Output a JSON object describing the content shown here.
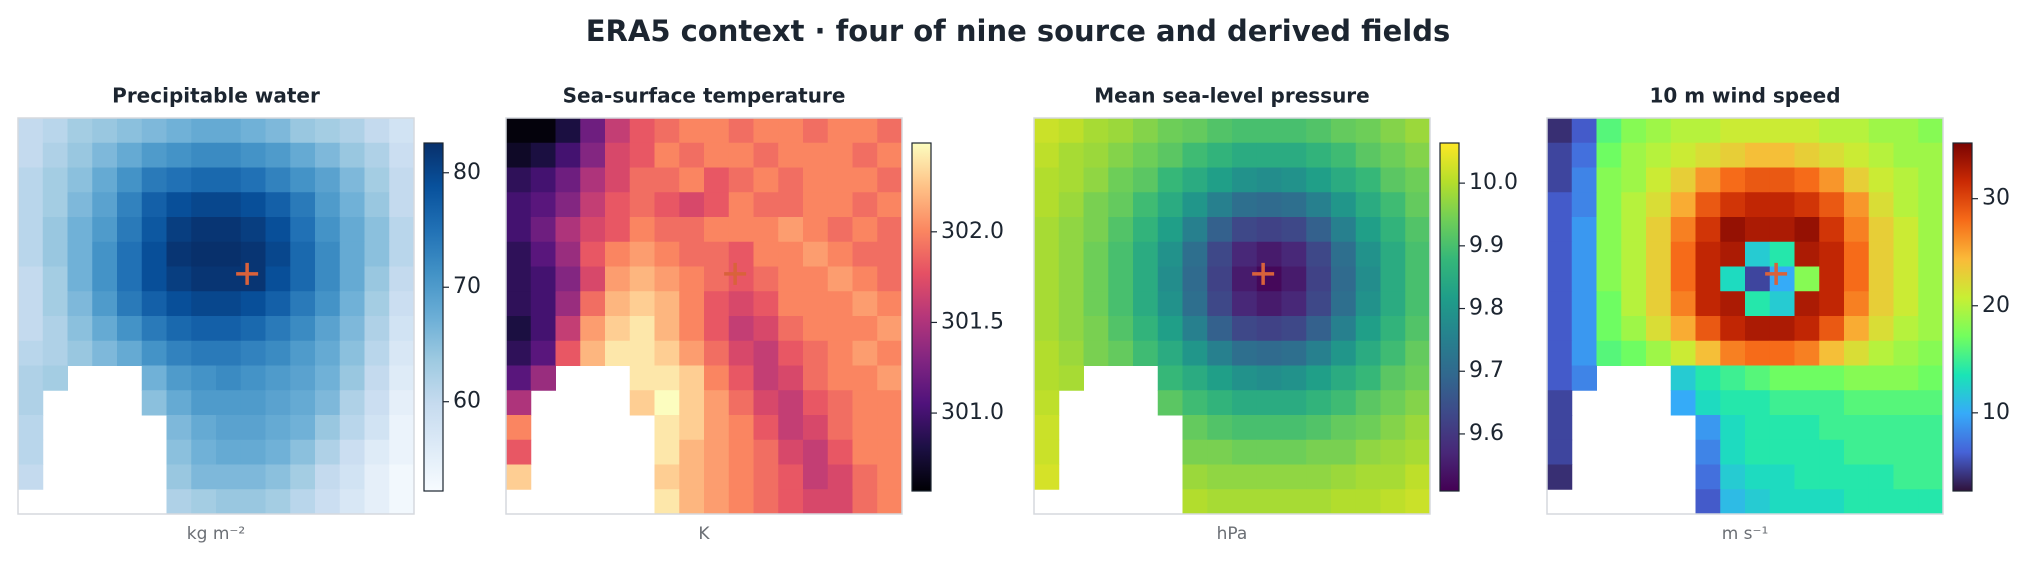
{
  "title": "ERA5 context · four of nine source and derived fields",
  "chart_data": [
    {
      "type": "heatmap",
      "title": "Precipitable water",
      "xlabel": "kg m⁻²",
      "colormap": "Blues",
      "clim": [
        52.2,
        82.6
      ],
      "cticks": [
        60,
        70,
        80
      ],
      "values": [
        [
          60,
          61,
          63,
          64,
          65,
          66,
          67,
          68,
          68,
          67,
          66,
          64,
          63,
          62,
          60,
          58
        ],
        [
          60,
          62,
          64,
          66,
          68,
          70,
          71,
          72,
          72,
          71,
          70,
          68,
          66,
          64,
          62,
          59
        ],
        [
          61,
          63,
          65,
          68,
          71,
          74,
          75,
          76,
          76,
          75,
          73,
          71,
          69,
          66,
          63,
          60
        ],
        [
          61,
          63,
          66,
          69,
          73,
          77,
          79,
          80,
          80,
          79,
          77,
          74,
          70,
          67,
          64,
          60
        ],
        [
          61,
          64,
          67,
          70,
          74,
          78,
          81,
          82,
          82,
          81,
          79,
          75,
          71,
          68,
          65,
          61
        ],
        [
          61,
          64,
          67,
          71,
          75,
          79,
          82,
          83,
          83,
          82,
          80,
          76,
          72,
          68,
          65,
          61
        ],
        [
          60,
          63,
          67,
          71,
          75,
          79,
          81,
          82,
          82,
          82,
          79,
          76,
          72,
          68,
          64,
          60
        ],
        [
          60,
          63,
          66,
          70,
          74,
          77,
          79,
          80,
          80,
          79,
          77,
          74,
          71,
          67,
          63,
          59
        ],
        [
          60,
          62,
          65,
          68,
          71,
          74,
          76,
          77,
          77,
          76,
          74,
          72,
          69,
          66,
          62,
          58
        ],
        [
          61,
          62,
          64,
          66,
          68,
          71,
          73,
          74,
          74,
          73,
          72,
          70,
          68,
          65,
          61,
          57
        ],
        [
          62,
          63,
          null,
          null,
          null,
          67,
          70,
          71,
          72,
          71,
          70,
          69,
          67,
          64,
          60,
          56
        ],
        [
          62,
          null,
          null,
          null,
          null,
          65,
          68,
          70,
          70,
          70,
          69,
          68,
          66,
          62,
          59,
          55
        ],
        [
          61,
          null,
          null,
          null,
          null,
          null,
          66,
          68,
          69,
          69,
          68,
          67,
          64,
          61,
          58,
          54
        ],
        [
          61,
          null,
          null,
          null,
          null,
          null,
          65,
          67,
          68,
          68,
          67,
          65,
          62,
          59,
          56,
          54
        ],
        [
          60,
          null,
          null,
          null,
          null,
          null,
          64,
          66,
          66,
          66,
          65,
          63,
          60,
          58,
          55,
          53
        ],
        [
          null,
          null,
          null,
          null,
          null,
          null,
          62,
          63,
          64,
          64,
          63,
          61,
          59,
          57,
          55,
          53
        ]
      ]
    },
    {
      "type": "heatmap",
      "title": "Sea-surface temperature",
      "xlabel": "K",
      "colormap": "magma",
      "clim": [
        300.57,
        302.49
      ],
      "cticks": [
        {
          "value": 301,
          "label": "301.0"
        },
        301.5,
        {
          "value": 302,
          "label": "302.0"
        }
      ],
      "values": [
        [
          300.6,
          300.6,
          300.8,
          301.2,
          301.6,
          301.8,
          301.9,
          302.0,
          302.0,
          301.9,
          302.0,
          302.0,
          301.9,
          302.0,
          302.0,
          301.9
        ],
        [
          300.7,
          300.8,
          301.0,
          301.3,
          301.7,
          301.8,
          302.0,
          301.9,
          302.0,
          302.0,
          301.9,
          302.0,
          302.0,
          302.0,
          301.9,
          302.0
        ],
        [
          300.9,
          301.0,
          301.2,
          301.5,
          301.7,
          301.9,
          301.9,
          302.0,
          301.8,
          301.9,
          302.0,
          301.9,
          302.0,
          302.0,
          302.0,
          301.9
        ],
        [
          301.0,
          301.1,
          301.3,
          301.6,
          301.8,
          301.9,
          301.8,
          301.7,
          301.8,
          302.0,
          301.9,
          301.9,
          302.0,
          302.0,
          301.9,
          302.0
        ],
        [
          301.0,
          301.2,
          301.5,
          301.7,
          301.8,
          302.0,
          301.9,
          301.9,
          302.0,
          302.0,
          302.0,
          302.1,
          302.0,
          301.9,
          302.0,
          301.9
        ],
        [
          300.9,
          301.1,
          301.4,
          301.8,
          302.0,
          302.1,
          302.0,
          301.9,
          301.9,
          301.8,
          302.0,
          302.0,
          302.1,
          302.0,
          301.9,
          301.9
        ],
        [
          300.9,
          301.0,
          301.3,
          301.7,
          302.1,
          302.2,
          302.1,
          302.0,
          301.9,
          301.8,
          301.9,
          302.0,
          302.0,
          302.1,
          302.0,
          301.9
        ],
        [
          300.9,
          301.0,
          301.4,
          301.9,
          302.2,
          302.3,
          302.2,
          302.0,
          301.8,
          301.7,
          301.8,
          302.0,
          302.0,
          302.0,
          302.1,
          302.0
        ],
        [
          300.8,
          301.0,
          301.6,
          302.1,
          302.3,
          302.4,
          302.2,
          302.0,
          301.8,
          301.6,
          301.7,
          301.9,
          302.0,
          302.0,
          302.0,
          302.1
        ],
        [
          300.9,
          301.1,
          301.8,
          302.2,
          302.4,
          302.4,
          302.3,
          302.1,
          301.9,
          301.7,
          301.6,
          301.8,
          301.9,
          302.0,
          302.1,
          302.0
        ],
        [
          301.1,
          301.4,
          null,
          null,
          null,
          302.4,
          302.4,
          302.3,
          302.0,
          301.8,
          301.6,
          301.7,
          301.9,
          302.0,
          302.0,
          302.1
        ],
        [
          301.5,
          null,
          null,
          null,
          null,
          302.3,
          302.5,
          302.3,
          302.1,
          301.9,
          301.7,
          301.6,
          301.8,
          301.9,
          302.0,
          302.0
        ],
        [
          302.0,
          null,
          null,
          null,
          null,
          null,
          302.4,
          302.3,
          302.1,
          302.0,
          301.8,
          301.6,
          301.7,
          301.9,
          302.0,
          302.0
        ],
        [
          301.8,
          null,
          null,
          null,
          null,
          null,
          302.4,
          302.2,
          302.1,
          302.0,
          301.9,
          301.7,
          301.6,
          301.8,
          302.0,
          302.0
        ],
        [
          302.3,
          null,
          null,
          null,
          null,
          null,
          302.3,
          302.2,
          302.1,
          302.0,
          301.9,
          301.8,
          301.6,
          301.7,
          301.9,
          302.0
        ],
        [
          null,
          null,
          null,
          null,
          null,
          null,
          302.4,
          302.2,
          302.1,
          302.0,
          301.9,
          301.8,
          301.7,
          301.7,
          301.9,
          302.0
        ]
      ]
    },
    {
      "type": "heatmap",
      "title": "Mean sea-level pressure",
      "xlabel": "hPa",
      "colormap": "viridis",
      "clim": [
        9.509,
        10.064
      ],
      "cticks": [
        9.6,
        9.7,
        9.8,
        9.9,
        {
          "value": 10,
          "label": "10.0"
        }
      ],
      "values": [
        [
          10.02,
          10.01,
          9.99,
          9.98,
          9.96,
          9.94,
          9.93,
          9.91,
          9.9,
          9.9,
          9.9,
          9.91,
          9.93,
          9.94,
          9.96,
          9.98
        ],
        [
          10.01,
          9.99,
          9.98,
          9.96,
          9.94,
          9.92,
          9.89,
          9.87,
          9.85,
          9.85,
          9.85,
          9.87,
          9.89,
          9.92,
          9.94,
          9.96
        ],
        [
          10.0,
          9.99,
          9.97,
          9.94,
          9.92,
          9.88,
          9.85,
          9.82,
          9.79,
          9.78,
          9.79,
          9.82,
          9.85,
          9.88,
          9.92,
          9.94
        ],
        [
          10.0,
          9.98,
          9.95,
          9.93,
          9.89,
          9.85,
          9.8,
          9.75,
          9.71,
          9.7,
          9.71,
          9.75,
          9.8,
          9.85,
          9.89,
          9.93
        ],
        [
          9.99,
          9.97,
          9.95,
          9.91,
          9.87,
          9.82,
          9.75,
          9.68,
          9.63,
          9.62,
          9.63,
          9.68,
          9.75,
          9.82,
          9.87,
          9.91
        ],
        [
          9.99,
          9.97,
          9.94,
          9.9,
          9.85,
          9.79,
          9.71,
          9.63,
          9.57,
          9.55,
          9.57,
          9.63,
          9.71,
          9.79,
          9.85,
          9.9
        ],
        [
          9.99,
          9.97,
          9.94,
          9.9,
          9.85,
          9.78,
          9.7,
          9.62,
          9.55,
          9.52,
          9.55,
          9.62,
          9.7,
          9.78,
          9.85,
          9.9
        ],
        [
          9.99,
          9.97,
          9.94,
          9.9,
          9.85,
          9.79,
          9.71,
          9.63,
          9.57,
          9.55,
          9.57,
          9.63,
          9.71,
          9.79,
          9.85,
          9.9
        ],
        [
          9.99,
          9.97,
          9.95,
          9.91,
          9.87,
          9.82,
          9.75,
          9.68,
          9.63,
          9.62,
          9.63,
          9.68,
          9.75,
          9.82,
          9.87,
          9.91
        ],
        [
          10.0,
          9.98,
          9.95,
          9.93,
          9.89,
          9.85,
          9.8,
          9.75,
          9.71,
          9.7,
          9.71,
          9.75,
          9.8,
          9.85,
          9.89,
          9.93
        ],
        [
          10.0,
          9.99,
          null,
          null,
          null,
          9.88,
          9.85,
          9.82,
          9.79,
          9.78,
          9.79,
          9.82,
          9.85,
          9.88,
          9.92,
          9.94
        ],
        [
          10.01,
          null,
          null,
          null,
          null,
          9.92,
          9.89,
          9.87,
          9.85,
          9.85,
          9.85,
          9.87,
          9.89,
          9.92,
          9.94,
          9.96
        ],
        [
          10.02,
          null,
          null,
          null,
          null,
          null,
          9.93,
          9.91,
          9.9,
          9.9,
          9.9,
          9.91,
          9.93,
          9.94,
          9.96,
          9.98
        ],
        [
          10.02,
          null,
          null,
          null,
          null,
          null,
          9.95,
          9.95,
          9.94,
          9.94,
          9.94,
          9.95,
          9.95,
          9.97,
          9.98,
          9.99
        ],
        [
          10.03,
          null,
          null,
          null,
          null,
          null,
          9.98,
          9.97,
          9.97,
          9.97,
          9.97,
          9.97,
          9.98,
          9.99,
          9.99,
          10.01
        ],
        [
          null,
          null,
          null,
          null,
          null,
          null,
          10.0,
          9.99,
          9.99,
          9.99,
          9.99,
          9.99,
          10.0,
          10.0,
          10.01,
          10.02
        ]
      ]
    },
    {
      "type": "heatmap",
      "title": "10 m wind speed",
      "xlabel": "m s⁻¹",
      "colormap": "turbo",
      "clim": [
        2.7,
        35.2
      ],
      "cticks": [
        10,
        20,
        30
      ],
      "values": [
        [
          4,
          6,
          16,
          18,
          19,
          20,
          20,
          21,
          21,
          21,
          21,
          20,
          20,
          19,
          19,
          18
        ],
        [
          5,
          7,
          17,
          19,
          20,
          21,
          22,
          23,
          24,
          24,
          23,
          22,
          21,
          20,
          19,
          19
        ],
        [
          5,
          8,
          18,
          19,
          21,
          23,
          26,
          28,
          29,
          29,
          28,
          26,
          23,
          21,
          20,
          19
        ],
        [
          6,
          8,
          18,
          20,
          22,
          25,
          29,
          31,
          32,
          32,
          31,
          29,
          26,
          22,
          20,
          19
        ],
        [
          6,
          9,
          18,
          20,
          23,
          27,
          31,
          34,
          33,
          33,
          34,
          31,
          27,
          23,
          21,
          19
        ],
        [
          6,
          9,
          18,
          20,
          23,
          28,
          32,
          33,
          12,
          14,
          33,
          32,
          28,
          23,
          21,
          19
        ],
        [
          6,
          9,
          18,
          20,
          23,
          28,
          32,
          13,
          5,
          10,
          18,
          32,
          28,
          23,
          21,
          19
        ],
        [
          6,
          9,
          17,
          20,
          23,
          27,
          32,
          33,
          14,
          12,
          33,
          32,
          27,
          23,
          21,
          19
        ],
        [
          6,
          9,
          17,
          19,
          22,
          25,
          29,
          32,
          33,
          33,
          32,
          29,
          25,
          22,
          20,
          19
        ],
        [
          6,
          9,
          16,
          17,
          19,
          21,
          24,
          27,
          28,
          28,
          27,
          24,
          22,
          20,
          19,
          18
        ],
        [
          6,
          8,
          null,
          null,
          null,
          12,
          14,
          15,
          16,
          17,
          17,
          17,
          18,
          18,
          18,
          17
        ],
        [
          5,
          null,
          null,
          null,
          null,
          10,
          13,
          14,
          14,
          15,
          15,
          15,
          16,
          16,
          16,
          16
        ],
        [
          5,
          null,
          null,
          null,
          null,
          null,
          9,
          13,
          14,
          14,
          14,
          15,
          15,
          15,
          15,
          15
        ],
        [
          5,
          null,
          null,
          null,
          null,
          null,
          8,
          13,
          14,
          14,
          14,
          14,
          15,
          15,
          15,
          15
        ],
        [
          4,
          null,
          null,
          null,
          null,
          null,
          7,
          12,
          13,
          13,
          14,
          14,
          14,
          14,
          15,
          15
        ],
        [
          null,
          null,
          null,
          null,
          null,
          null,
          6,
          11,
          12,
          13,
          13,
          13,
          14,
          14,
          14,
          14
        ]
      ]
    }
  ]
}
